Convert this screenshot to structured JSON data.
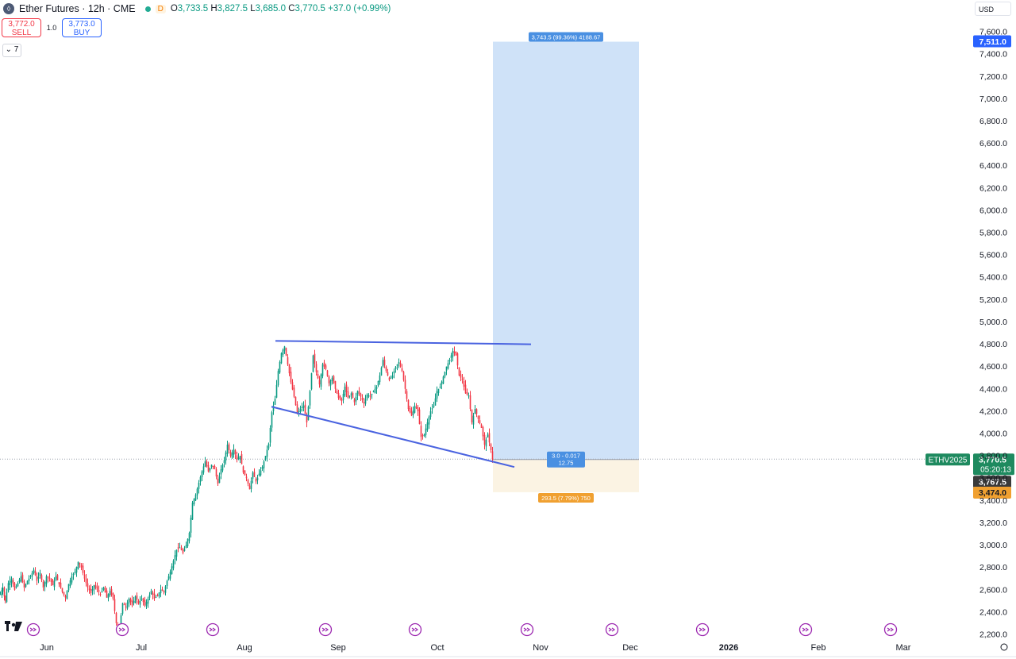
{
  "header": {
    "logo_icon": "ether-icon",
    "title": "Ether Futures · 12h · CME",
    "d_badge": "D",
    "open_label": "O",
    "open": "3,733.5",
    "high_label": "H",
    "high": "3,827.5",
    "low_label": "L",
    "low": "3,685.0",
    "close_label": "C",
    "close": "3,770.5",
    "change": "+37.0 (+0.99%)"
  },
  "trade": {
    "sell_price": "3,772.0",
    "sell_label": "SELL",
    "quantity": "1.0",
    "buy_price": "3,773.0",
    "buy_label": "BUY"
  },
  "collapse_label": "7",
  "currency": "USD",
  "watermark_icon": "tradingview-logo",
  "colors": {
    "up": "#089981",
    "down": "#f23645",
    "trendline": "#4a63e0",
    "target_zone": "#cfe2f8",
    "stop_zone": "#fbf3e3",
    "target_label": "#4a90e2",
    "stop_label": "#f0a030",
    "price_label": "#1e8a5f"
  },
  "chart_data": {
    "type": "candlestick",
    "interval": "12h",
    "x_axis_labels": [
      "Jun",
      "Jul",
      "Aug",
      "Sep",
      "Oct",
      "Nov",
      "Dec",
      "2026",
      "Feb",
      "Mar"
    ],
    "y_ticks": [
      "2,200.0",
      "2,400.0",
      "2,600.0",
      "2,800.0",
      "3,000.0",
      "3,200.0",
      "3,400.0",
      "3,600.0",
      "3,800.0",
      "4,000.0",
      "4,200.0",
      "4,400.0",
      "4,600.0",
      "4,800.0",
      "5,000.0",
      "5,200.0",
      "5,400.0",
      "5,600.0",
      "5,800.0",
      "6,000.0",
      "6,200.0",
      "6,400.0",
      "6,600.0",
      "6,800.0",
      "7,000.0",
      "7,200.0",
      "7,400.0",
      "7,600.0"
    ],
    "ylim": [
      2150,
      7680
    ],
    "price_path": [
      [
        0,
        2560
      ],
      [
        3,
        2620
      ],
      [
        6,
        2500
      ],
      [
        10,
        2660
      ],
      [
        14,
        2700
      ],
      [
        18,
        2600
      ],
      [
        22,
        2660
      ],
      [
        26,
        2720
      ],
      [
        30,
        2620
      ],
      [
        34,
        2680
      ],
      [
        38,
        2720
      ],
      [
        42,
        2780
      ],
      [
        46,
        2680
      ],
      [
        50,
        2750
      ],
      [
        54,
        2620
      ],
      [
        58,
        2720
      ],
      [
        62,
        2700
      ],
      [
        66,
        2640
      ],
      [
        70,
        2720
      ],
      [
        74,
        2650
      ],
      [
        78,
        2580
      ],
      [
        82,
        2530
      ],
      [
        86,
        2650
      ],
      [
        90,
        2720
      ],
      [
        94,
        2760
      ],
      [
        98,
        2850
      ],
      [
        102,
        2800
      ],
      [
        106,
        2700
      ],
      [
        110,
        2620
      ],
      [
        114,
        2570
      ],
      [
        118,
        2640
      ],
      [
        122,
        2600
      ],
      [
        126,
        2560
      ],
      [
        130,
        2620
      ],
      [
        134,
        2530
      ],
      [
        138,
        2590
      ],
      [
        142,
        2520
      ],
      [
        146,
        2300
      ],
      [
        150,
        2260
      ],
      [
        154,
        2480
      ],
      [
        158,
        2450
      ],
      [
        162,
        2520
      ],
      [
        166,
        2460
      ],
      [
        170,
        2540
      ],
      [
        174,
        2480
      ],
      [
        178,
        2520
      ],
      [
        182,
        2460
      ],
      [
        186,
        2520
      ],
      [
        190,
        2590
      ],
      [
        194,
        2520
      ],
      [
        198,
        2550
      ],
      [
        202,
        2600
      ],
      [
        206,
        2580
      ],
      [
        210,
        2680
      ],
      [
        214,
        2760
      ],
      [
        218,
        2860
      ],
      [
        222,
        2960
      ],
      [
        226,
        2980
      ],
      [
        230,
        2930
      ],
      [
        234,
        3000
      ],
      [
        238,
        3110
      ],
      [
        242,
        3380
      ],
      [
        246,
        3450
      ],
      [
        250,
        3560
      ],
      [
        254,
        3660
      ],
      [
        258,
        3750
      ],
      [
        262,
        3660
      ],
      [
        266,
        3720
      ],
      [
        270,
        3680
      ],
      [
        274,
        3550
      ],
      [
        278,
        3680
      ],
      [
        282,
        3760
      ],
      [
        286,
        3900
      ],
      [
        290,
        3800
      ],
      [
        294,
        3860
      ],
      [
        298,
        3770
      ],
      [
        302,
        3800
      ],
      [
        306,
        3650
      ],
      [
        310,
        3600
      ],
      [
        314,
        3500
      ],
      [
        318,
        3650
      ],
      [
        322,
        3570
      ],
      [
        326,
        3640
      ],
      [
        330,
        3700
      ],
      [
        334,
        3800
      ],
      [
        338,
        3910
      ],
      [
        342,
        4190
      ],
      [
        346,
        4310
      ],
      [
        350,
        4560
      ],
      [
        354,
        4720
      ],
      [
        358,
        4780
      ],
      [
        362,
        4620
      ],
      [
        366,
        4460
      ],
      [
        370,
        4330
      ],
      [
        374,
        4180
      ],
      [
        378,
        4220
      ],
      [
        382,
        4250
      ],
      [
        386,
        4100
      ],
      [
        390,
        4380
      ],
      [
        394,
        4700
      ],
      [
        398,
        4550
      ],
      [
        402,
        4440
      ],
      [
        406,
        4620
      ],
      [
        410,
        4580
      ],
      [
        414,
        4450
      ],
      [
        418,
        4500
      ],
      [
        422,
        4400
      ],
      [
        426,
        4320
      ],
      [
        430,
        4290
      ],
      [
        434,
        4420
      ],
      [
        438,
        4320
      ],
      [
        442,
        4360
      ],
      [
        446,
        4280
      ],
      [
        450,
        4380
      ],
      [
        454,
        4330
      ],
      [
        458,
        4270
      ],
      [
        462,
        4350
      ],
      [
        466,
        4330
      ],
      [
        470,
        4380
      ],
      [
        474,
        4420
      ],
      [
        478,
        4520
      ],
      [
        482,
        4660
      ],
      [
        486,
        4560
      ],
      [
        490,
        4480
      ],
      [
        494,
        4520
      ],
      [
        498,
        4600
      ],
      [
        502,
        4640
      ],
      [
        506,
        4560
      ],
      [
        510,
        4400
      ],
      [
        514,
        4220
      ],
      [
        518,
        4160
      ],
      [
        522,
        4250
      ],
      [
        526,
        4200
      ],
      [
        530,
        3970
      ],
      [
        534,
        3990
      ],
      [
        538,
        4100
      ],
      [
        542,
        4200
      ],
      [
        546,
        4250
      ],
      [
        550,
        4380
      ],
      [
        554,
        4420
      ],
      [
        558,
        4510
      ],
      [
        562,
        4600
      ],
      [
        566,
        4660
      ],
      [
        570,
        4740
      ],
      [
        574,
        4700
      ],
      [
        578,
        4520
      ],
      [
        582,
        4480
      ],
      [
        586,
        4360
      ],
      [
        590,
        4340
      ],
      [
        594,
        4100
      ],
      [
        598,
        4220
      ],
      [
        602,
        4130
      ],
      [
        606,
        4050
      ],
      [
        610,
        3900
      ],
      [
        614,
        3990
      ],
      [
        618,
        3850
      ],
      [
        620,
        3770
      ]
    ],
    "last_price": 3770.5,
    "trendlines": [
      {
        "name": "resistance",
        "points": [
          [
            347,
            4830
          ],
          [
            669,
            4800
          ]
        ]
      },
      {
        "name": "support",
        "points": [
          [
            342,
            4240
          ],
          [
            648,
            3700
          ]
        ]
      }
    ],
    "long_position": {
      "entry": 3767.5,
      "target": 7511.0,
      "stop": 3474.0,
      "target_label": "3,743.5 (99.36%) 4188.67",
      "ratio_label": "3.0 - 0.017",
      "ratio_sub": "12.75",
      "stop_label": "293.5 (7.79%) 750"
    },
    "price_scale_labels": {
      "target": "7,511.0",
      "symbol": "ETHV2025",
      "last": "3,770.5",
      "countdown": "05:20:13",
      "entry": "3,767.5",
      "stop": "3,474.0"
    }
  }
}
